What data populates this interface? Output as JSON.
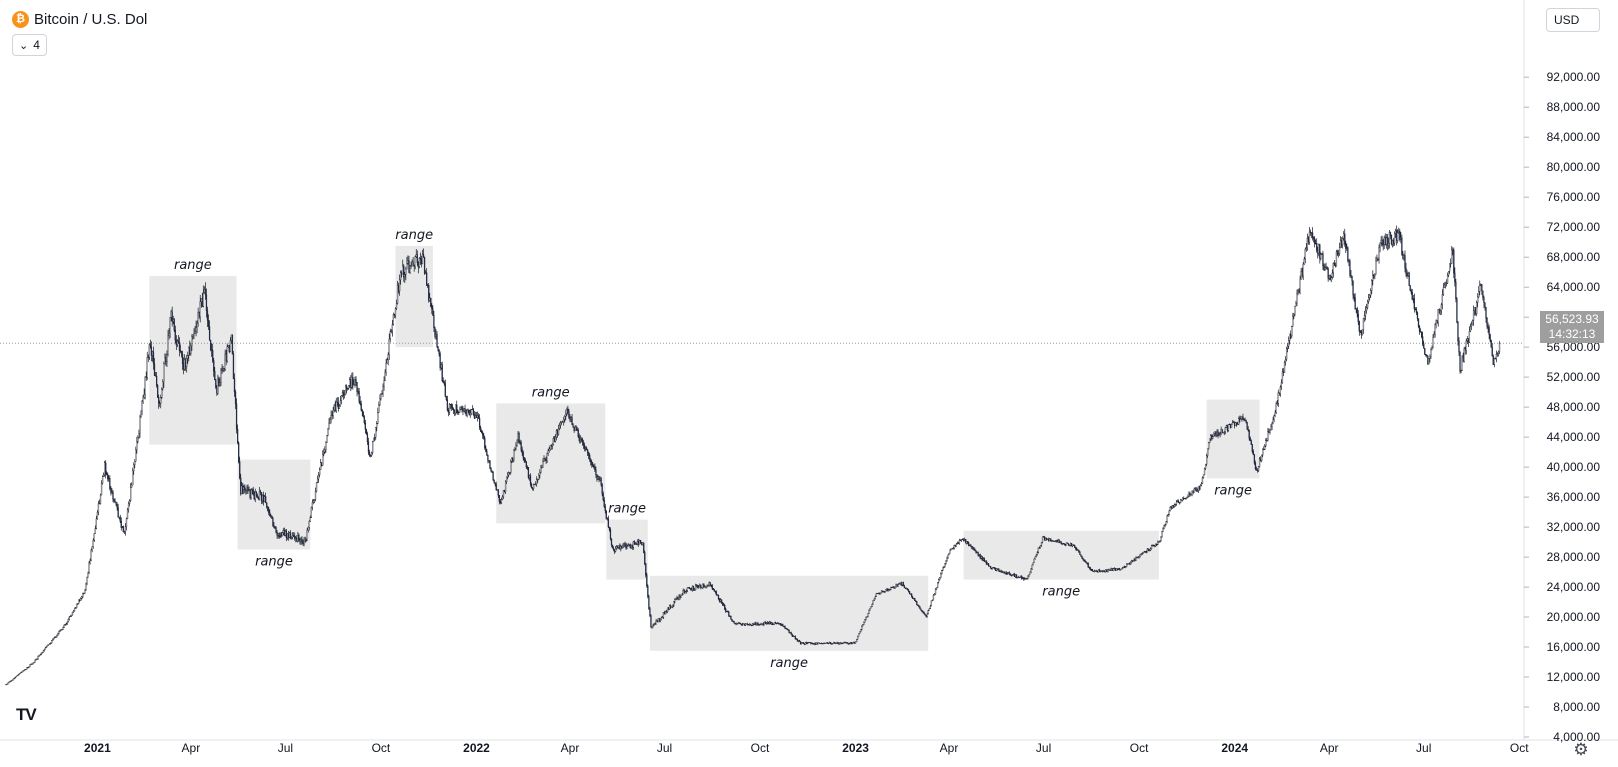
{
  "header": {
    "coin_glyph": "₿",
    "symbol_title": "Bitcoin / U.S. Dol",
    "collapse_count": "4",
    "currency": "USD"
  },
  "last_price": {
    "value": "56,523.93",
    "countdown": "14:32:13"
  },
  "colors": {
    "candle_up": "#ffffff",
    "candle_down": "#2b3a67",
    "candle_outline": "#131722",
    "range_box": "#e9e9e9",
    "price_line": "#9598a1",
    "price_label_bg": "#9e9e9e"
  },
  "icons": {
    "logo": "tradingview-logo-icon",
    "settings": "gear-icon",
    "collapse": "chevron-down-icon"
  },
  "chart_data": {
    "type": "candlestick",
    "title": "Bitcoin / U.S. Dol",
    "x_range": [
      "2020-10-05",
      "2024-10-01"
    ],
    "ylim": [
      0,
      95000
    ],
    "y_ticks": [
      4000,
      8000,
      12000,
      16000,
      20000,
      24000,
      28000,
      32000,
      36000,
      40000,
      44000,
      48000,
      52000,
      56000,
      60000,
      64000,
      68000,
      72000,
      76000,
      80000,
      84000,
      88000,
      92000
    ],
    "y_tick_labels": [
      "4,000.00",
      "8,000.00",
      "12,000.00",
      "16,000.00",
      "20,000.00",
      "24,000.00",
      "28,000.00",
      "32,000.00",
      "36,000.00",
      "40,000.00",
      "44,000.00",
      "48,000.00",
      "52,000.00",
      "56,000.00",
      "60,000.00",
      "64,000.00",
      "68,000.00",
      "72,000.00",
      "76,000.00",
      "80,000.00",
      "84,000.00",
      "88,000.00",
      "92,000.00"
    ],
    "x_ticks": [
      {
        "date": "2021-01-01",
        "label": "2021",
        "bold": true
      },
      {
        "date": "2021-04-01",
        "label": "Apr",
        "bold": false
      },
      {
        "date": "2021-07-01",
        "label": "Jul",
        "bold": false
      },
      {
        "date": "2021-10-01",
        "label": "Oct",
        "bold": false
      },
      {
        "date": "2022-01-01",
        "label": "2022",
        "bold": true
      },
      {
        "date": "2022-04-01",
        "label": "Apr",
        "bold": false
      },
      {
        "date": "2022-07-01",
        "label": "Jul",
        "bold": false
      },
      {
        "date": "2022-10-01",
        "label": "Oct",
        "bold": false
      },
      {
        "date": "2023-01-01",
        "label": "2023",
        "bold": true
      },
      {
        "date": "2023-04-01",
        "label": "Apr",
        "bold": false
      },
      {
        "date": "2023-07-01",
        "label": "Jul",
        "bold": false
      },
      {
        "date": "2023-10-01",
        "label": "Oct",
        "bold": false
      },
      {
        "date": "2024-01-01",
        "label": "2024",
        "bold": true
      },
      {
        "date": "2024-04-01",
        "label": "Apr",
        "bold": false
      },
      {
        "date": "2024-07-01",
        "label": "Jul",
        "bold": false
      },
      {
        "date": "2024-10-01",
        "label": "Oct",
        "bold": false
      }
    ],
    "price_path": [
      [
        "2020-10-05",
        11000
      ],
      [
        "2020-11-01",
        14000
      ],
      [
        "2020-12-01",
        19000
      ],
      [
        "2020-12-20",
        23500
      ],
      [
        "2021-01-08",
        40000
      ],
      [
        "2021-01-27",
        31000
      ],
      [
        "2021-02-10",
        45000
      ],
      [
        "2021-02-21",
        57000
      ],
      [
        "2021-03-01",
        48000
      ],
      [
        "2021-03-13",
        60000
      ],
      [
        "2021-03-25",
        53000
      ],
      [
        "2021-04-14",
        63500
      ],
      [
        "2021-04-25",
        50000
      ],
      [
        "2021-05-10",
        57000
      ],
      [
        "2021-05-19",
        37000
      ],
      [
        "2021-06-10",
        36000
      ],
      [
        "2021-06-22",
        31500
      ],
      [
        "2021-07-20",
        30000
      ],
      [
        "2021-08-14",
        47000
      ],
      [
        "2021-09-06",
        52000
      ],
      [
        "2021-09-21",
        41000
      ],
      [
        "2021-10-20",
        66000
      ],
      [
        "2021-11-10",
        68000
      ],
      [
        "2021-12-04",
        48000
      ],
      [
        "2022-01-01",
        47000
      ],
      [
        "2022-01-24",
        35000
      ],
      [
        "2022-02-10",
        44000
      ],
      [
        "2022-02-24",
        37000
      ],
      [
        "2022-03-28",
        47500
      ],
      [
        "2022-04-30",
        38000
      ],
      [
        "2022-05-12",
        29000
      ],
      [
        "2022-06-10",
        30000
      ],
      [
        "2022-06-18",
        18500
      ],
      [
        "2022-07-20",
        23500
      ],
      [
        "2022-08-14",
        24500
      ],
      [
        "2022-09-06",
        19000
      ],
      [
        "2022-10-20",
        19200
      ],
      [
        "2022-11-09",
        16500
      ],
      [
        "2022-12-31",
        16500
      ],
      [
        "2023-01-21",
        23000
      ],
      [
        "2023-02-15",
        24500
      ],
      [
        "2023-03-10",
        20000
      ],
      [
        "2023-03-31",
        28500
      ],
      [
        "2023-04-14",
        30500
      ],
      [
        "2023-05-12",
        26500
      ],
      [
        "2023-06-15",
        25000
      ],
      [
        "2023-06-30",
        30500
      ],
      [
        "2023-07-31",
        29500
      ],
      [
        "2023-08-17",
        26000
      ],
      [
        "2023-09-15",
        26500
      ],
      [
        "2023-10-20",
        30000
      ],
      [
        "2023-10-31",
        34500
      ],
      [
        "2023-11-30",
        37500
      ],
      [
        "2023-12-08",
        44000
      ],
      [
        "2024-01-11",
        46500
      ],
      [
        "2024-01-22",
        39500
      ],
      [
        "2024-02-10",
        48000
      ],
      [
        "2024-02-28",
        61000
      ],
      [
        "2024-03-14",
        72000
      ],
      [
        "2024-04-01",
        65000
      ],
      [
        "2024-04-15",
        71000
      ],
      [
        "2024-05-01",
        57500
      ],
      [
        "2024-05-21",
        70000
      ],
      [
        "2024-06-07",
        71000
      ],
      [
        "2024-06-24",
        60000
      ],
      [
        "2024-07-05",
        54000
      ],
      [
        "2024-07-29",
        69000
      ],
      [
        "2024-08-05",
        53000
      ],
      [
        "2024-08-25",
        64000
      ],
      [
        "2024-09-06",
        54000
      ],
      [
        "2024-09-12",
        56500
      ]
    ],
    "volatility": [
      [
        "2020-10-05",
        0.006
      ],
      [
        "2020-12-20",
        0.01
      ],
      [
        "2021-01-05",
        0.018
      ],
      [
        "2021-06-30",
        0.018
      ],
      [
        "2021-12-31",
        0.013
      ],
      [
        "2022-06-30",
        0.014
      ],
      [
        "2022-10-01",
        0.01
      ],
      [
        "2023-01-01",
        0.008
      ],
      [
        "2023-10-01",
        0.007
      ],
      [
        "2024-02-01",
        0.011
      ],
      [
        "2024-09-12",
        0.014
      ]
    ],
    "last_price": 56523.93,
    "price_line": 56523.93,
    "ranges": [
      {
        "label": "range",
        "x0": "2021-02-20",
        "x1": "2021-05-15",
        "y0": 43000,
        "y1": 65500,
        "label_pos": "top"
      },
      {
        "label": "range",
        "x0": "2021-05-16",
        "x1": "2021-07-25",
        "y0": 29000,
        "y1": 41000,
        "label_pos": "bottom"
      },
      {
        "label": "range",
        "x0": "2021-10-15",
        "x1": "2021-11-20",
        "y0": 56000,
        "y1": 69500,
        "label_pos": "top"
      },
      {
        "label": "range",
        "x0": "2022-01-20",
        "x1": "2022-05-05",
        "y0": 32500,
        "y1": 48500,
        "label_pos": "top"
      },
      {
        "label": "range",
        "x0": "2022-05-06",
        "x1": "2022-06-15",
        "y0": 25000,
        "y1": 33000,
        "label_pos": "top"
      },
      {
        "label": "range",
        "x0": "2022-06-17",
        "x1": "2023-03-12",
        "y0": 15500,
        "y1": 25500,
        "label_pos": "bottom"
      },
      {
        "label": "range",
        "x0": "2023-04-15",
        "x1": "2023-10-20",
        "y0": 25000,
        "y1": 31500,
        "label_pos": "bottom"
      },
      {
        "label": "range",
        "x0": "2023-12-05",
        "x1": "2024-01-25",
        "y0": 38500,
        "y1": 49000,
        "label_pos": "bottom"
      }
    ]
  }
}
